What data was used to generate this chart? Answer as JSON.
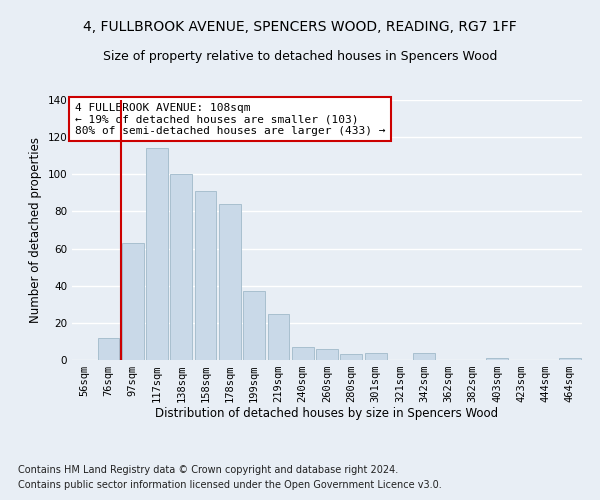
{
  "title1": "4, FULLBROOK AVENUE, SPENCERS WOOD, READING, RG7 1FF",
  "title2": "Size of property relative to detached houses in Spencers Wood",
  "xlabel": "Distribution of detached houses by size in Spencers Wood",
  "ylabel": "Number of detached properties",
  "bar_labels": [
    "56sqm",
    "76sqm",
    "97sqm",
    "117sqm",
    "138sqm",
    "158sqm",
    "178sqm",
    "199sqm",
    "219sqm",
    "240sqm",
    "260sqm",
    "280sqm",
    "301sqm",
    "321sqm",
    "342sqm",
    "362sqm",
    "382sqm",
    "403sqm",
    "423sqm",
    "444sqm",
    "464sqm"
  ],
  "bar_values": [
    0,
    12,
    63,
    114,
    100,
    91,
    84,
    37,
    25,
    7,
    6,
    3,
    4,
    0,
    4,
    0,
    0,
    1,
    0,
    0,
    1
  ],
  "bar_color": "#c9d9e8",
  "bar_edge_color": "#a8bfcf",
  "vline_color": "#cc0000",
  "vline_x": 1.5,
  "annotation_text": "4 FULLBROOK AVENUE: 108sqm\n← 19% of detached houses are smaller (103)\n80% of semi-detached houses are larger (433) →",
  "annotation_box_facecolor": "#ffffff",
  "annotation_box_edgecolor": "#cc0000",
  "ylim": [
    0,
    140
  ],
  "yticks": [
    0,
    20,
    40,
    60,
    80,
    100,
    120,
    140
  ],
  "footer1": "Contains HM Land Registry data © Crown copyright and database right 2024.",
  "footer2": "Contains public sector information licensed under the Open Government Licence v3.0.",
  "bg_color": "#e8eef5",
  "plot_bg_color": "#e8eef5",
  "grid_color": "#ffffff",
  "title_fontsize": 10,
  "subtitle_fontsize": 9,
  "axis_label_fontsize": 8.5,
  "tick_fontsize": 7.5,
  "annotation_fontsize": 8,
  "footer_fontsize": 7
}
